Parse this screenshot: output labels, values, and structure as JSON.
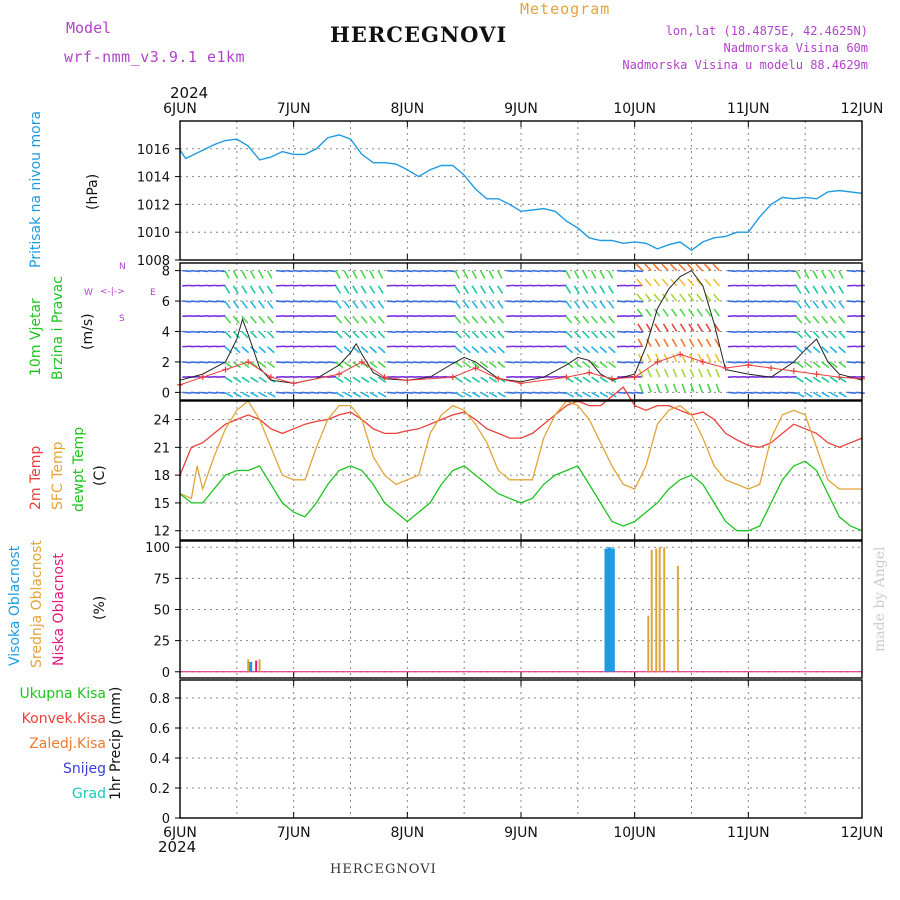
{
  "header": {
    "model_label": "Model",
    "model_name": "wrf-nmm_v3.9.1 e1km",
    "title": "HERCEGNOVI",
    "meteogram_label": "Meteogram",
    "coords": "lon,lat (18.4875E, 42.4625N)",
    "elevation": "Nadmorska Visina 60m",
    "model_elevation": "Nadmorska Visina u modelu 88.4629m",
    "year_top": "2024",
    "year_bottom": "2024",
    "footer_title": "HERCEGNOVI",
    "watermark": "made by Angel"
  },
  "colors": {
    "pressure": "#1e9be0",
    "temp2m": "#e8403c",
    "sfc": "#e0a53a",
    "dewpt": "#1dc41d",
    "high_cloud": "#1e9be0",
    "mid_cloud": "#e0a53a",
    "low_cloud": "#e0197a",
    "wind_speed": "#222222",
    "gust": "#e8403c",
    "purple_text": "#b043c9",
    "watermark": "#cccccc"
  },
  "days": [
    "6JUN",
    "7JUN",
    "8JUN",
    "9JUN",
    "10JUN",
    "11JUN",
    "12JUN"
  ],
  "panels": {
    "pressure": {
      "label_main": "Pritisak na nivou mora",
      "label_unit": "(hPa)",
      "yticks": [
        "1016",
        "1014",
        "1012",
        "1010",
        "1008"
      ]
    },
    "wind": {
      "label_line1": "10m Vjetar",
      "label_line2": "Brzina i Pravac",
      "label_unit": "(m/s)",
      "compass_n": "N",
      "compass_s": "S",
      "compass_w": "W",
      "compass_e": "E",
      "yticks": [
        "8",
        "6",
        "4",
        "2",
        "0"
      ]
    },
    "temp": {
      "label_line1": "2m Temp",
      "label_line2": "SFC Temp",
      "label_line3": "dewpt Temp",
      "label_unit": "(C)",
      "yticks": [
        "24",
        "21",
        "18",
        "15",
        "12"
      ]
    },
    "cloud": {
      "label_line1": "Visoka Oblacnost",
      "label_line2": "Srednja Oblacnost",
      "label_line3": "Niska Oblacnost",
      "label_unit": "(%)",
      "yticks": [
        "100",
        "75",
        "50",
        "25",
        "0"
      ]
    },
    "precip": {
      "label_main": "1hr Precip (mm)",
      "yticks": [
        "0.8",
        "0.6",
        "0.4",
        "0.2",
        "0"
      ],
      "legend": [
        "Ukupna Kisa",
        "Konvek.Kisa",
        "Zaledj.Kisa",
        "Snijeg",
        "Grad"
      ]
    }
  },
  "chart_data": [
    {
      "type": "line",
      "name": "pressure",
      "title": "Pritisak na nivou mora",
      "ylabel": "(hPa)",
      "ylim": [
        1008,
        1018
      ],
      "x_unit": "days since 6JUN 00",
      "series": [
        {
          "name": "Pritisak na nivou mora",
          "x": [
            0,
            0.05,
            0.1,
            0.2,
            0.3,
            0.4,
            0.5,
            0.6,
            0.7,
            0.8,
            0.9,
            1.0,
            1.1,
            1.2,
            1.3,
            1.4,
            1.5,
            1.6,
            1.7,
            1.8,
            1.9,
            2.0,
            2.1,
            2.2,
            2.3,
            2.4,
            2.5,
            2.6,
            2.7,
            2.8,
            2.9,
            3.0,
            3.1,
            3.2,
            3.3,
            3.4,
            3.5,
            3.6,
            3.7,
            3.8,
            3.9,
            4.0,
            4.1,
            4.2,
            4.3,
            4.4,
            4.5,
            4.6,
            4.7,
            4.8,
            4.9,
            5.0,
            5.1,
            5.2,
            5.3,
            5.4,
            5.5,
            5.6,
            5.7,
            5.8,
            5.9,
            6.0
          ],
          "y": [
            1015.9,
            1015.3,
            1015.5,
            1015.9,
            1016.3,
            1016.6,
            1016.7,
            1016.2,
            1015.2,
            1015.4,
            1015.8,
            1015.6,
            1015.6,
            1016.0,
            1016.8,
            1017.0,
            1016.7,
            1015.6,
            1015.0,
            1015.0,
            1014.9,
            1014.5,
            1014.0,
            1014.5,
            1014.8,
            1014.8,
            1014.1,
            1013.1,
            1012.4,
            1012.4,
            1012.0,
            1011.5,
            1011.6,
            1011.7,
            1011.5,
            1010.8,
            1010.3,
            1009.6,
            1009.4,
            1009.4,
            1009.2,
            1009.3,
            1009.2,
            1008.8,
            1009.1,
            1009.3,
            1008.7,
            1009.3,
            1009.6,
            1009.7,
            1010.0,
            1010.0,
            1011.1,
            1012.0,
            1012.5,
            1012.4,
            1012.5,
            1012.4,
            1012.9,
            1013.0,
            1012.9,
            1012.8
          ]
        }
      ]
    },
    {
      "type": "line",
      "name": "wind",
      "title": "10m Vjetar Brzina i Pravac",
      "ylabel": "(m/s)",
      "ylim": [
        -0.5,
        8.5
      ],
      "series": [
        {
          "name": "wind speed",
          "x": [
            0,
            0.2,
            0.4,
            0.5,
            0.55,
            0.6,
            0.7,
            0.8,
            1.0,
            1.2,
            1.4,
            1.5,
            1.55,
            1.6,
            1.7,
            1.8,
            2.0,
            2.2,
            2.4,
            2.5,
            2.6,
            2.8,
            3.0,
            3.2,
            3.4,
            3.5,
            3.6,
            3.7,
            3.8,
            4.0,
            4.1,
            4.2,
            4.3,
            4.4,
            4.5,
            4.6,
            4.7,
            4.8,
            5.0,
            5.2,
            5.4,
            5.5,
            5.6,
            5.7,
            5.8,
            6.0
          ],
          "y": [
            0.8,
            1.2,
            2.0,
            3.5,
            4.8,
            3.8,
            1.6,
            0.8,
            0.6,
            0.9,
            1.8,
            2.6,
            3.2,
            2.5,
            1.3,
            0.9,
            0.8,
            1.0,
            1.9,
            2.3,
            2.0,
            0.9,
            0.7,
            1.0,
            1.8,
            2.3,
            2.1,
            1.2,
            0.8,
            1.2,
            3.0,
            5.5,
            6.8,
            7.6,
            8.0,
            7.0,
            4.5,
            1.5,
            1.2,
            1.0,
            2.0,
            2.8,
            3.5,
            2.0,
            1.2,
            0.8
          ]
        },
        {
          "name": "gust",
          "x": [
            0,
            0.2,
            0.4,
            0.6,
            0.8,
            1.0,
            1.4,
            1.6,
            1.8,
            2.0,
            2.4,
            2.6,
            2.8,
            3.0,
            3.4,
            3.6,
            3.8,
            4.0,
            4.2,
            4.4,
            4.6,
            4.8,
            5.0,
            5.2,
            5.4,
            5.6,
            5.8,
            6.0
          ],
          "y": [
            0.5,
            1.0,
            1.5,
            2.0,
            1.0,
            0.6,
            1.2,
            2.0,
            1.0,
            0.8,
            1.0,
            1.6,
            0.9,
            0.6,
            1.0,
            1.3,
            0.9,
            1.0,
            2.0,
            2.5,
            2.0,
            1.6,
            1.8,
            1.6,
            1.4,
            1.2,
            1.0,
            0.9
          ]
        }
      ]
    },
    {
      "type": "line",
      "name": "temperature",
      "title": "2m Temp / SFC Temp / dewpt Temp",
      "ylabel": "(C)",
      "ylim": [
        11,
        26
      ],
      "series": [
        {
          "name": "2m Temp",
          "x": [
            0,
            0.1,
            0.2,
            0.3,
            0.4,
            0.5,
            0.6,
            0.7,
            0.8,
            0.9,
            1.0,
            1.1,
            1.2,
            1.3,
            1.4,
            1.5,
            1.6,
            1.7,
            1.8,
            1.9,
            2.0,
            2.1,
            2.2,
            2.3,
            2.4,
            2.5,
            2.6,
            2.7,
            2.8,
            2.9,
            3.0,
            3.1,
            3.2,
            3.3,
            3.4,
            3.5,
            3.6,
            3.7,
            3.8,
            3.9,
            4.0,
            4.1,
            4.2,
            4.3,
            4.4,
            4.5,
            4.6,
            4.7,
            4.8,
            4.9,
            5.0,
            5.1,
            5.2,
            5.3,
            5.4,
            5.5,
            5.6,
            5.7,
            5.8,
            5.9,
            6.0
          ],
          "y": [
            18,
            21,
            21.5,
            22.5,
            23.5,
            24.0,
            24.5,
            24.0,
            23.0,
            22.5,
            23.0,
            23.5,
            23.8,
            24.0,
            24.5,
            24.8,
            24.0,
            23.0,
            22.5,
            22.5,
            22.8,
            23.0,
            23.5,
            24.0,
            24.5,
            24.8,
            24.0,
            23.0,
            22.5,
            22.0,
            22.0,
            22.5,
            23.5,
            24.5,
            25.5,
            26.0,
            25.5,
            25.5,
            26.5,
            27.5,
            25.5,
            25.0,
            25.5,
            25.5,
            25.0,
            24.5,
            24.8,
            24.0,
            22.5,
            21.8,
            21.2,
            21.0,
            21.5,
            22.5,
            23.5,
            23.0,
            22.5,
            21.5,
            21.0,
            21.5,
            22.0
          ]
        },
        {
          "name": "SFC Temp",
          "x": [
            0,
            0.1,
            0.15,
            0.2,
            0.3,
            0.4,
            0.5,
            0.6,
            0.7,
            0.8,
            0.9,
            1.0,
            1.1,
            1.2,
            1.3,
            1.4,
            1.5,
            1.6,
            1.7,
            1.8,
            1.9,
            2.0,
            2.1,
            2.2,
            2.3,
            2.4,
            2.5,
            2.6,
            2.7,
            2.8,
            2.9,
            3.0,
            3.1,
            3.2,
            3.3,
            3.4,
            3.5,
            3.6,
            3.7,
            3.8,
            3.9,
            4.0,
            4.1,
            4.2,
            4.3,
            4.4,
            4.5,
            4.6,
            4.7,
            4.8,
            4.9,
            5.0,
            5.1,
            5.2,
            5.3,
            5.4,
            5.5,
            5.6,
            5.7,
            5.8,
            5.9,
            6.0
          ],
          "y": [
            16,
            15.5,
            19,
            16.5,
            20,
            23,
            25,
            26,
            24,
            21,
            18,
            17.5,
            17.5,
            21,
            24,
            25.5,
            25.5,
            24,
            20,
            18,
            17,
            17.5,
            18,
            22.5,
            24.5,
            25.5,
            25,
            23.5,
            21.5,
            18.5,
            17.5,
            17.5,
            17.5,
            22,
            24.5,
            26,
            25.5,
            24,
            21.5,
            19,
            17,
            16.5,
            19,
            23.5,
            25,
            25.5,
            24.5,
            22,
            19,
            17.5,
            17,
            16.5,
            17,
            22,
            24.5,
            25,
            24.5,
            21,
            17.5,
            16.5,
            16.5,
            16.5
          ]
        },
        {
          "name": "dewpt Temp",
          "x": [
            0,
            0.1,
            0.2,
            0.3,
            0.4,
            0.5,
            0.6,
            0.7,
            0.8,
            0.9,
            1.0,
            1.1,
            1.2,
            1.3,
            1.4,
            1.5,
            1.6,
            1.7,
            1.8,
            1.9,
            2.0,
            2.1,
            2.2,
            2.3,
            2.4,
            2.5,
            2.6,
            2.7,
            2.8,
            2.9,
            3.0,
            3.1,
            3.2,
            3.3,
            3.4,
            3.5,
            3.6,
            3.7,
            3.8,
            3.9,
            4.0,
            4.1,
            4.2,
            4.3,
            4.4,
            4.5,
            4.6,
            4.7,
            4.8,
            4.9,
            5.0,
            5.1,
            5.2,
            5.3,
            5.4,
            5.5,
            5.6,
            5.7,
            5.8,
            5.9,
            6.0
          ],
          "y": [
            16,
            15,
            15,
            16.5,
            18,
            18.5,
            18.5,
            19,
            17,
            15,
            14,
            13.5,
            15,
            17,
            18.5,
            19,
            18.5,
            17,
            15,
            14,
            13,
            14,
            15,
            17,
            18.5,
            19,
            18,
            17,
            16,
            15.5,
            15,
            15.5,
            17,
            18,
            18.5,
            19,
            17,
            15,
            13,
            12.5,
            13,
            14,
            15,
            16.5,
            17.5,
            18,
            17,
            15,
            13,
            12,
            12,
            12.5,
            15,
            17.5,
            19,
            19.5,
            18.5,
            16,
            13.5,
            12.5,
            12
          ]
        }
      ]
    },
    {
      "type": "bar",
      "name": "cloud",
      "title": "Visoka / Srednja / Niska Oblacnost",
      "ylabel": "(%)",
      "ylim": [
        0,
        105
      ],
      "series": [
        {
          "name": "Visoka Oblacnost",
          "x": [
            0.62,
            3.75,
            3.78,
            3.81
          ],
          "y": [
            8,
            99,
            100,
            99
          ]
        },
        {
          "name": "Srednja Oblacnost",
          "x": [
            0.6,
            0.7,
            4.12,
            4.15,
            4.19,
            4.22,
            4.26,
            4.38
          ],
          "y": [
            10,
            10,
            45,
            98,
            99,
            100,
            100,
            85
          ]
        },
        {
          "name": "Niska Oblacnost",
          "x": [
            0.67
          ],
          "y": [
            9
          ]
        }
      ]
    },
    {
      "type": "bar",
      "name": "precip",
      "title": "1hr Precip (mm)",
      "ylabel": "1hr Precip (mm)",
      "ylim": [
        0,
        0.9
      ],
      "series": [
        {
          "name": "Ukupna Kisa",
          "values": []
        },
        {
          "name": "Konvek.Kisa",
          "values": []
        },
        {
          "name": "Zaledj.Kisa",
          "values": []
        },
        {
          "name": "Snijeg",
          "values": []
        },
        {
          "name": "Grad",
          "values": []
        }
      ]
    }
  ]
}
